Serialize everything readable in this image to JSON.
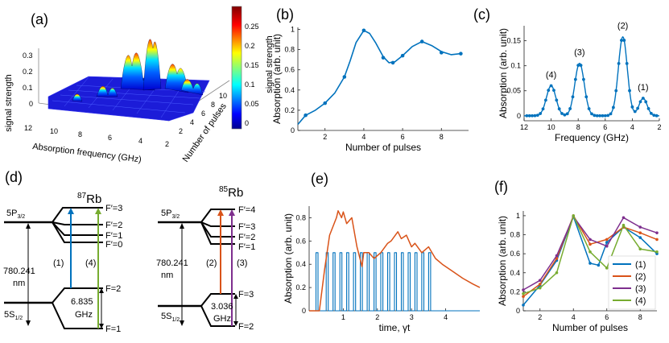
{
  "panels": {
    "a": {
      "label": "(a)",
      "zlabel": "signal strength",
      "xlabel": "Absorption frequency (GHz)",
      "ylabel": "Number of pulses",
      "colorbar_label": "signal strength",
      "z_ticks": [
        "0.3",
        "0.2",
        "0.1",
        "0"
      ],
      "x_ticks": [
        "12",
        "10",
        "8",
        "6",
        "4",
        "2"
      ],
      "y_ticks": [
        "2",
        "4",
        "6",
        "8",
        "10"
      ],
      "colorbar_ticks": [
        "0.25",
        "0.2",
        "0.15",
        "0.1",
        "0.05",
        "0"
      ],
      "colorbar_colors": [
        "#7f0000",
        "#ff0000",
        "#ff8c00",
        "#ffff00",
        "#00ffff",
        "#0080ff",
        "#0000ff",
        "#00008f"
      ]
    },
    "b": {
      "label": "(b)"
    },
    "c": {
      "label": "(c)"
    },
    "d": {
      "label": "(d)",
      "rb87": {
        "title_mass": "87",
        "title_el": "Rb",
        "excited": "5P",
        "excited_sub": "3/2",
        "ground": "5S",
        "ground_sub": "1/2",
        "upper_levels": [
          "F′=3",
          "F′=2",
          "F′=1",
          "F′=0"
        ],
        "lower_levels": [
          "F=2",
          "F=1"
        ],
        "wavelength": "780.241",
        "wavelength_unit": "nm",
        "splitting": "6.835",
        "splitting_unit": "GHz",
        "transition_labels": [
          "(1)",
          "(4)"
        ]
      },
      "rb85": {
        "title_mass": "85",
        "title_el": "Rb",
        "excited": "5P",
        "excited_sub": "3/2",
        "ground": "5S",
        "ground_sub": "1/2",
        "upper_levels": [
          "F′=4",
          "F′=3",
          "F′=2",
          "F′=1"
        ],
        "lower_levels": [
          "F=3",
          "F=2"
        ],
        "wavelength": "780.241",
        "wavelength_unit": "nm",
        "splitting": "3.036",
        "splitting_unit": "GHz",
        "transition_labels": [
          "(2)",
          "(3)"
        ]
      },
      "colors": {
        "line1": "#0072bd",
        "line4": "#77ac30",
        "line2": "#d95319",
        "line3": "#7e2f8e"
      }
    },
    "e": {
      "label": "(e)"
    },
    "f": {
      "label": "(f)"
    }
  },
  "chart_data": [
    {
      "panel": "b",
      "type": "line",
      "xlabel": "Number of pulses",
      "ylabel": "Absorption (arb. unit)",
      "xlim": [
        0.6,
        9.4
      ],
      "ylim": [
        0,
        1.02
      ],
      "x_ticks": [
        2,
        4,
        6,
        8
      ],
      "y_ticks": [
        0,
        0.2,
        0.4,
        0.6,
        0.8,
        1
      ],
      "color": "#0072bd",
      "curve_x": [
        0.6,
        1.0,
        1.5,
        2.0,
        2.5,
        3.0,
        3.3,
        3.6,
        4.0,
        4.3,
        4.6,
        5.0,
        5.3,
        5.6,
        6.0,
        6.5,
        7.0,
        7.5,
        8.0,
        8.5,
        9.0
      ],
      "curve_y": [
        0.06,
        0.15,
        0.2,
        0.27,
        0.37,
        0.53,
        0.69,
        0.87,
        0.99,
        0.96,
        0.87,
        0.73,
        0.67,
        0.68,
        0.74,
        0.83,
        0.88,
        0.84,
        0.78,
        0.75,
        0.76
      ],
      "points_x": [
        1,
        2,
        3,
        4,
        5,
        5.5,
        6,
        7,
        8,
        9
      ],
      "points_y": [
        0.15,
        0.27,
        0.53,
        0.99,
        0.72,
        0.67,
        0.74,
        0.88,
        0.77,
        0.76
      ]
    },
    {
      "panel": "c",
      "type": "line",
      "xlabel": "Frequency (GHz)",
      "ylabel": "Absorption (arb. unit)",
      "xlim": [
        12,
        2
      ],
      "ylim": [
        -0.01,
        0.18
      ],
      "x_ticks": [
        12,
        10,
        8,
        6,
        4,
        2
      ],
      "y_ticks": [
        0,
        0.05,
        0.1,
        0.15
      ],
      "color": "#0072bd",
      "peaks": [
        {
          "center": 10.0,
          "height": 0.06,
          "width": 0.35,
          "label": "(4)"
        },
        {
          "center": 7.9,
          "height": 0.105,
          "width": 0.35,
          "label": "(3)"
        },
        {
          "center": 4.7,
          "height": 0.158,
          "width": 0.33,
          "label": "(2)"
        },
        {
          "center": 3.2,
          "height": 0.035,
          "width": 0.3,
          "label": "(1)"
        }
      ],
      "point_step": 0.2
    },
    {
      "panel": "e",
      "type": "line",
      "xlabel": "time, γt",
      "ylabel": "Absorption (arb. unit)",
      "xlim": [
        0,
        5
      ],
      "ylim": [
        0,
        0.9
      ],
      "x_ticks": [
        1,
        2,
        3,
        4
      ],
      "y_ticks": [
        0,
        0.2,
        0.4,
        0.6,
        0.8
      ],
      "series": [
        {
          "name": "pulses",
          "color": "#0072bd",
          "pulse_level": 0.5,
          "pulse_starts": [
            0.2,
            0.5,
            0.7,
            0.9,
            1.1,
            1.3,
            1.5,
            1.7,
            1.9,
            2.1,
            2.3,
            2.5,
            2.7,
            2.9,
            3.1,
            3.3,
            3.5
          ],
          "pulse_width": 0.06
        },
        {
          "name": "absorption",
          "color": "#d95319",
          "x": [
            0,
            0.3,
            0.45,
            0.6,
            0.8,
            0.85,
            0.95,
            1.0,
            1.1,
            1.25,
            1.4,
            1.55,
            1.6,
            1.75,
            1.9,
            2.1,
            2.3,
            2.4,
            2.6,
            2.7,
            2.85,
            3.0,
            3.1,
            3.3,
            3.5,
            3.6,
            3.7,
            3.9,
            4.2,
            4.5,
            4.8,
            5.0
          ],
          "y": [
            0,
            0,
            0.35,
            0.65,
            0.8,
            0.86,
            0.8,
            0.85,
            0.75,
            0.8,
            0.55,
            0.38,
            0.5,
            0.5,
            0.45,
            0.5,
            0.58,
            0.6,
            0.68,
            0.62,
            0.65,
            0.55,
            0.58,
            0.5,
            0.55,
            0.5,
            0.45,
            0.4,
            0.34,
            0.28,
            0.23,
            0.2
          ]
        }
      ]
    },
    {
      "panel": "f",
      "type": "line",
      "xlabel": "Number of pulses",
      "ylabel": "Absorption (arb. unit)",
      "xlim": [
        1,
        9
      ],
      "ylim": [
        0,
        1.05
      ],
      "x_ticks": [
        2,
        4,
        6,
        8
      ],
      "y_ticks": [
        0,
        0.2,
        0.4,
        0.6,
        0.8,
        1
      ],
      "series": [
        {
          "name": "(1)",
          "color": "#0072bd",
          "x": [
            1,
            2,
            3,
            4,
            5,
            5.5,
            6,
            7,
            8,
            9
          ],
          "y": [
            0.06,
            0.27,
            0.53,
            0.99,
            0.5,
            0.48,
            0.72,
            0.88,
            0.77,
            0.6
          ]
        },
        {
          "name": "(2)",
          "color": "#d95319",
          "x": [
            1,
            2,
            3,
            4,
            5,
            6,
            7,
            8,
            9
          ],
          "y": [
            0.15,
            0.28,
            0.55,
            1.0,
            0.7,
            0.75,
            0.88,
            0.82,
            0.75
          ]
        },
        {
          "name": "(3)",
          "color": "#7e2f8e",
          "x": [
            1,
            2,
            3,
            4,
            5,
            6,
            7,
            8,
            9
          ],
          "y": [
            0.22,
            0.32,
            0.58,
            0.99,
            0.75,
            0.68,
            0.98,
            0.88,
            0.82
          ]
        },
        {
          "name": "(4)",
          "color": "#77ac30",
          "x": [
            1,
            2,
            3,
            4,
            5,
            6,
            7,
            8,
            9
          ],
          "y": [
            0.18,
            0.24,
            0.4,
            1.0,
            0.62,
            0.45,
            0.9,
            0.65,
            0.62
          ]
        }
      ]
    }
  ]
}
